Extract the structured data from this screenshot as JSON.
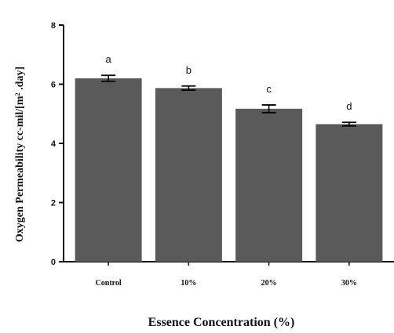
{
  "chart_data": {
    "type": "bar",
    "categories": [
      "Control",
      "10%",
      "20%",
      "30%"
    ],
    "values": [
      6.2,
      5.87,
      5.17,
      4.65
    ],
    "errors": [
      0.1,
      0.07,
      0.13,
      0.06
    ],
    "significance_labels": [
      "a",
      "b",
      "c",
      "d"
    ],
    "xlabel": "Essence Concentration (%)",
    "ylabel": "Oxygen Permeability cc-mil/[m² .day]",
    "ylim": [
      0,
      8
    ],
    "yticks": [
      "0",
      "2",
      "4",
      "6",
      "8"
    ],
    "grid": false,
    "bar_color": "#5a5a5a",
    "axis_color": "#111111"
  }
}
